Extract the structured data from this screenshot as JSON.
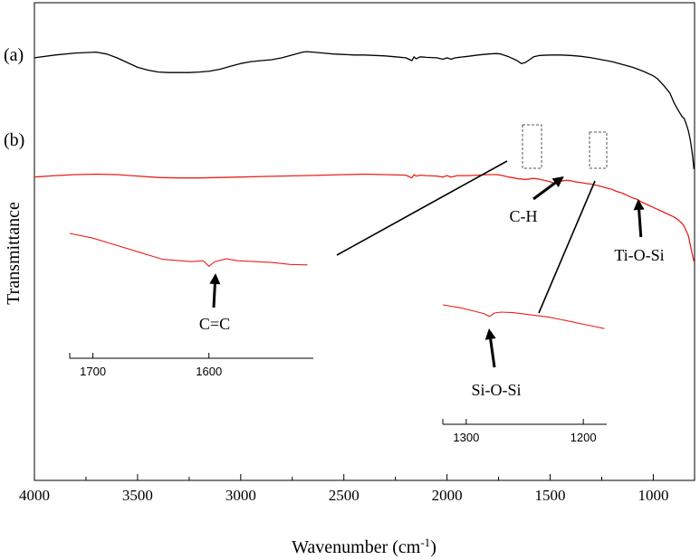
{
  "chart_data": {
    "type": "line",
    "title": "",
    "xlabel": "Wavenumber (cm",
    "xlabel_sup": "-1",
    "xlabel_close": ")",
    "ylabel": "Transmittance",
    "xlim": [
      4000,
      800
    ],
    "x_reversed": true,
    "x_ticks": [
      "4000",
      "3500",
      "3000",
      "2500",
      "2000",
      "1500",
      "1000"
    ],
    "x_tick_values": [
      4000,
      3500,
      3000,
      2500,
      2000,
      1500,
      1000
    ],
    "grid": false,
    "series": [
      {
        "name": "(a)",
        "color": "#000000",
        "points": [
          [
            4000,
            82
          ],
          [
            3900,
            85
          ],
          [
            3800,
            87
          ],
          [
            3700,
            88
          ],
          [
            3650,
            86
          ],
          [
            3600,
            82
          ],
          [
            3550,
            77
          ],
          [
            3500,
            72
          ],
          [
            3450,
            69
          ],
          [
            3400,
            67
          ],
          [
            3350,
            66.5
          ],
          [
            3300,
            66.5
          ],
          [
            3250,
            66.5
          ],
          [
            3200,
            67
          ],
          [
            3150,
            68
          ],
          [
            3100,
            70
          ],
          [
            3050,
            73
          ],
          [
            3000,
            76
          ],
          [
            2950,
            78
          ],
          [
            2900,
            79
          ],
          [
            2850,
            80
          ],
          [
            2800,
            82
          ],
          [
            2750,
            85
          ],
          [
            2700,
            88
          ],
          [
            2680,
            88.5
          ],
          [
            2650,
            88
          ],
          [
            2600,
            87
          ],
          [
            2550,
            86
          ],
          [
            2500,
            85.5
          ],
          [
            2450,
            85
          ],
          [
            2400,
            85
          ],
          [
            2350,
            84.5
          ],
          [
            2300,
            84
          ],
          [
            2250,
            83
          ],
          [
            2200,
            82
          ],
          [
            2170,
            79
          ],
          [
            2160,
            83
          ],
          [
            2150,
            81
          ],
          [
            2130,
            83
          ],
          [
            2100,
            82.5
          ],
          [
            2050,
            82
          ],
          [
            2020,
            80.5
          ],
          [
            2000,
            82
          ],
          [
            1980,
            80.5
          ],
          [
            1960,
            82
          ],
          [
            1900,
            83.5
          ],
          [
            1850,
            85
          ],
          [
            1800,
            86
          ],
          [
            1760,
            86.5
          ],
          [
            1740,
            86
          ],
          [
            1700,
            83
          ],
          [
            1660,
            79
          ],
          [
            1640,
            76
          ],
          [
            1620,
            77
          ],
          [
            1600,
            80
          ],
          [
            1580,
            83
          ],
          [
            1550,
            84.5
          ],
          [
            1500,
            85
          ],
          [
            1450,
            85
          ],
          [
            1400,
            84.5
          ],
          [
            1350,
            83.5
          ],
          [
            1300,
            82
          ],
          [
            1250,
            80
          ],
          [
            1200,
            78
          ],
          [
            1150,
            75
          ],
          [
            1100,
            72
          ],
          [
            1050,
            68
          ],
          [
            1000,
            63
          ],
          [
            980,
            60
          ],
          [
            950,
            53
          ],
          [
            920,
            45
          ],
          [
            900,
            35
          ],
          [
            880,
            27
          ],
          [
            860,
            20
          ],
          [
            850,
            18
          ],
          [
            840,
            12
          ],
          [
            830,
            5
          ],
          [
            820,
            -5
          ],
          [
            810,
            -20
          ],
          [
            803,
            -35
          ]
        ]
      },
      {
        "name": "(b)",
        "color": "#e8221b",
        "points": [
          [
            4000,
            47
          ],
          [
            3900,
            48.5
          ],
          [
            3800,
            49.5
          ],
          [
            3700,
            50
          ],
          [
            3600,
            49.5
          ],
          [
            3500,
            48
          ],
          [
            3400,
            46.5
          ],
          [
            3300,
            46
          ],
          [
            3200,
            46
          ],
          [
            3100,
            46.5
          ],
          [
            3000,
            47
          ],
          [
            2900,
            47.5
          ],
          [
            2800,
            48
          ],
          [
            2700,
            48.5
          ],
          [
            2600,
            49
          ],
          [
            2500,
            49.5
          ],
          [
            2400,
            50
          ],
          [
            2300,
            49.5
          ],
          [
            2200,
            49
          ],
          [
            2170,
            46
          ],
          [
            2160,
            49.5
          ],
          [
            2150,
            48
          ],
          [
            2130,
            49
          ],
          [
            2100,
            48.5
          ],
          [
            2050,
            48
          ],
          [
            2020,
            47
          ],
          [
            2000,
            48.5
          ],
          [
            1980,
            47
          ],
          [
            1950,
            48.5
          ],
          [
            1900,
            48.5
          ],
          [
            1850,
            49
          ],
          [
            1800,
            49.5
          ],
          [
            1760,
            49.5
          ],
          [
            1740,
            49
          ],
          [
            1700,
            47
          ],
          [
            1650,
            45
          ],
          [
            1620,
            44.5
          ],
          [
            1600,
            45
          ],
          [
            1580,
            45.5
          ],
          [
            1560,
            45
          ],
          [
            1540,
            44
          ],
          [
            1520,
            43
          ],
          [
            1500,
            42
          ],
          [
            1480,
            40
          ],
          [
            1460,
            41
          ],
          [
            1440,
            43
          ],
          [
            1420,
            43.5
          ],
          [
            1400,
            43
          ],
          [
            1380,
            42
          ],
          [
            1350,
            41
          ],
          [
            1320,
            40
          ],
          [
            1300,
            39.5
          ],
          [
            1270,
            38
          ],
          [
            1250,
            37
          ],
          [
            1220,
            35
          ],
          [
            1200,
            34
          ],
          [
            1180,
            32
          ],
          [
            1150,
            30
          ],
          [
            1120,
            27
          ],
          [
            1100,
            25
          ],
          [
            1080,
            23.5
          ],
          [
            1060,
            21
          ],
          [
            1050,
            20
          ],
          [
            1030,
            18
          ],
          [
            1000,
            15
          ],
          [
            970,
            12
          ],
          [
            950,
            10
          ],
          [
            930,
            8
          ],
          [
            900,
            5
          ],
          [
            880,
            2
          ],
          [
            860,
            -2
          ],
          [
            850,
            -5
          ],
          [
            840,
            -10
          ],
          [
            830,
            -15
          ],
          [
            820,
            -25
          ],
          [
            810,
            -35
          ],
          [
            803,
            -42
          ]
        ]
      }
    ],
    "series_labels": [
      "(a)",
      "(b)"
    ],
    "annotations": [
      {
        "text": "C-H",
        "at": 1420
      },
      {
        "text": "Ti-O-Si",
        "at": 1060
      }
    ],
    "insets": [
      {
        "name": "inset-1600",
        "line_color": "#e8221b",
        "xlim": [
          1720,
          1510
        ],
        "x_ticks": [
          "1700",
          "1600"
        ],
        "x_tick_values": [
          1700,
          1600
        ],
        "annotation": {
          "text": "C=C",
          "at": 1600
        },
        "points": [
          [
            1720,
            9
          ],
          [
            1700,
            8
          ],
          [
            1680,
            6.5
          ],
          [
            1660,
            5
          ],
          [
            1640,
            3.5
          ],
          [
            1625,
            3.2
          ],
          [
            1615,
            3
          ],
          [
            1605,
            3.2
          ],
          [
            1600,
            2
          ],
          [
            1595,
            3
          ],
          [
            1585,
            3.6
          ],
          [
            1575,
            3.2
          ],
          [
            1560,
            3
          ],
          [
            1545,
            2.8
          ],
          [
            1530,
            2.4
          ],
          [
            1515,
            2.3
          ]
        ]
      },
      {
        "name": "inset-1280",
        "line_color": "#e8221b",
        "xlim": [
          1320,
          1180
        ],
        "x_ticks": [
          "1300",
          "1200"
        ],
        "x_tick_values": [
          1300,
          1200
        ],
        "annotation": {
          "text": "Si-O-Si",
          "at": 1280
        },
        "points": [
          [
            1320,
            9
          ],
          [
            1305,
            8
          ],
          [
            1295,
            7
          ],
          [
            1285,
            6
          ],
          [
            1280,
            5
          ],
          [
            1276,
            6.2
          ],
          [
            1270,
            6.5
          ],
          [
            1260,
            6.3
          ],
          [
            1250,
            5.8
          ],
          [
            1240,
            5.3
          ],
          [
            1230,
            4.8
          ],
          [
            1220,
            4
          ],
          [
            1210,
            3.2
          ],
          [
            1200,
            2.3
          ],
          [
            1190,
            1.5
          ],
          [
            1182,
            0.8
          ]
        ]
      }
    ]
  }
}
